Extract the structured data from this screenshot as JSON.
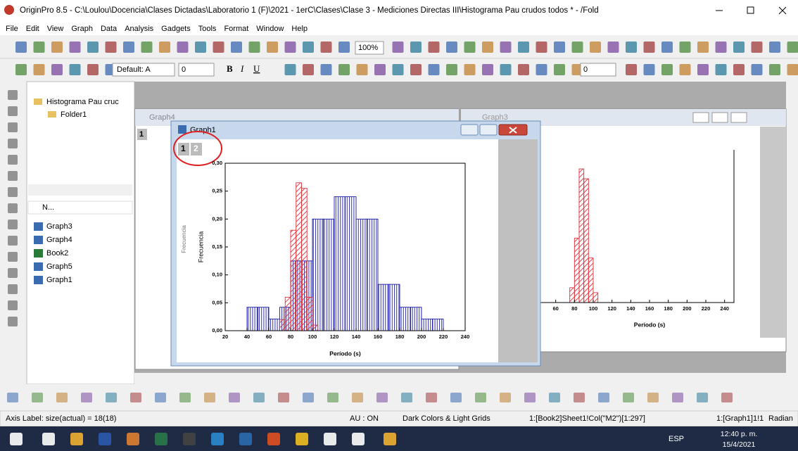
{
  "window": {
    "title": "OriginPro 8.5 - C:\\Loulou\\Docencia\\Clases Dictadas\\Laboratorio 1 (F)\\2021 - 1erC\\Clases\\Clase 3 - Mediciones Directas III\\Histograma Pau crudos todos * - /Fold",
    "menu": [
      "File",
      "Edit",
      "View",
      "Graph",
      "Data",
      "Analysis",
      "Gadgets",
      "Tools",
      "Format",
      "Window",
      "Help"
    ]
  },
  "toolbar": {
    "zoom": "100%",
    "font": "Default: A",
    "size": "0",
    "bold": "B",
    "italic": "I",
    "underline": "U",
    "size2": "0"
  },
  "explorer": {
    "root": "Histograma Pau cruc",
    "folder": "Folder1",
    "column": "N...",
    "items": [
      "Graph3",
      "Graph4",
      "Book2",
      "Graph5",
      "Graph1"
    ]
  },
  "graph4": {
    "title": "Graph4",
    "layer": "1"
  },
  "graph3": {
    "title": "Graph3"
  },
  "graph1": {
    "title": "Graph1",
    "layers": [
      "1",
      "2"
    ],
    "ghost_label": "Frecuencia"
  },
  "chart_data": [
    {
      "type": "histogram",
      "ylabel": "Frecuencia",
      "xlabel": "Período (s)",
      "xlim": [
        20,
        240
      ],
      "ylim": [
        0,
        0.3
      ],
      "xticks": [
        20,
        40,
        60,
        80,
        100,
        120,
        140,
        160,
        180,
        200,
        220,
        240
      ],
      "yticks": [
        {
          "value": 0,
          "label": "0,00"
        },
        {
          "value": 0.05,
          "label": "0,05"
        },
        {
          "value": 0.1,
          "label": "0,10"
        },
        {
          "value": 0.15,
          "label": "0,15"
        },
        {
          "value": 0.2,
          "label": "0,20"
        },
        {
          "value": 0.25,
          "label": "0,25"
        },
        {
          "value": 0.3,
          "label": "0,30"
        }
      ],
      "series": [
        {
          "color": "#1c1ca8",
          "bins": [
            40,
            50,
            60,
            70,
            80,
            90,
            100,
            110,
            120,
            130,
            140,
            150,
            160,
            170,
            180,
            190,
            200,
            210,
            220
          ],
          "values": [
            0.042,
            0.042,
            0.021,
            0.042,
            0.125,
            0.125,
            0.2,
            0.2,
            0.24,
            0.24,
            0.2,
            0.2,
            0.083,
            0.083,
            0.042,
            0.042,
            0.021,
            0.021
          ]
        },
        {
          "color": "#e0303a",
          "bins": [
            70,
            75,
            80,
            85,
            90,
            95,
            100,
            105
          ],
          "values": [
            0.02,
            0.06,
            0.18,
            0.265,
            0.255,
            0.06,
            0.01
          ]
        }
      ]
    },
    {
      "type": "histogram",
      "xlabel": "Período (s)",
      "xlim": [
        40,
        250
      ],
      "ylim": [
        0,
        0.28
      ],
      "xticks": [
        60,
        80,
        100,
        120,
        140,
        160,
        180,
        200,
        220,
        240
      ],
      "series": [
        {
          "color": "#e0303a",
          "bins": [
            75,
            80,
            85,
            90,
            95,
            100,
            105
          ],
          "values": [
            0.03,
            0.13,
            0.27,
            0.25,
            0.09,
            0.02
          ]
        }
      ]
    }
  ],
  "status": [
    "Axis Label: size(actual) = 18(18)",
    "AU : ON",
    "Dark Colors & Light Grids",
    "1:[Book2]Sheet1!Col(\"M2\")[1:297]",
    "1:[Graph1]1!1",
    "Radian"
  ],
  "taskbar": {
    "lang": "ESP",
    "time": "12:40 p. m.",
    "date": "15/4/2021"
  }
}
